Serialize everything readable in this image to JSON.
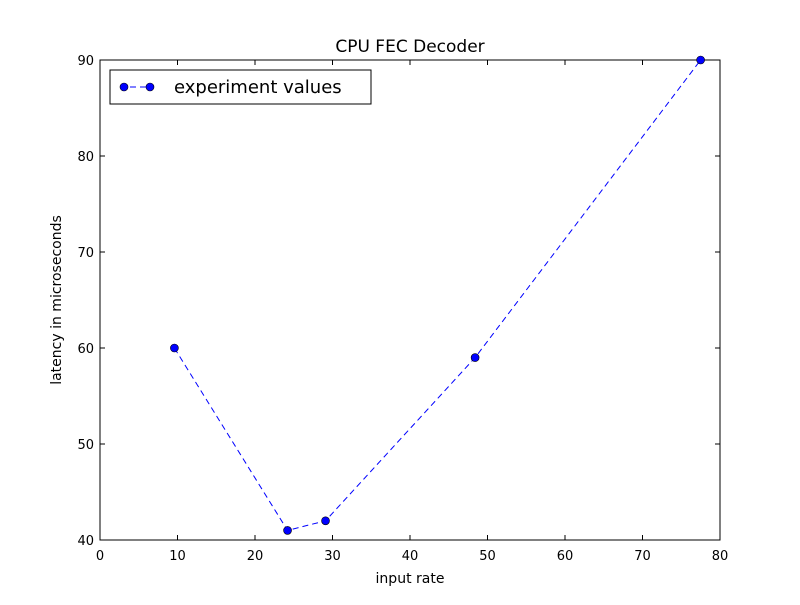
{
  "chart_data": {
    "type": "line",
    "title": "CPU FEC Decoder",
    "xlabel": "input rate",
    "ylabel": "latency in microseconds",
    "xlim": [
      0,
      80
    ],
    "ylim": [
      40,
      90
    ],
    "xticks": [
      0,
      10,
      20,
      30,
      40,
      50,
      60,
      70,
      80
    ],
    "yticks": [
      40,
      50,
      60,
      70,
      80,
      90
    ],
    "grid": false,
    "legend_position": "top-left",
    "series": [
      {
        "name": "experiment values",
        "color": "#0000ff",
        "line_style": "dashed",
        "marker": "circle",
        "x": [
          9.6,
          24.2,
          29.1,
          48.4,
          77.5
        ],
        "y": [
          60,
          41,
          42,
          59,
          90
        ]
      }
    ]
  }
}
